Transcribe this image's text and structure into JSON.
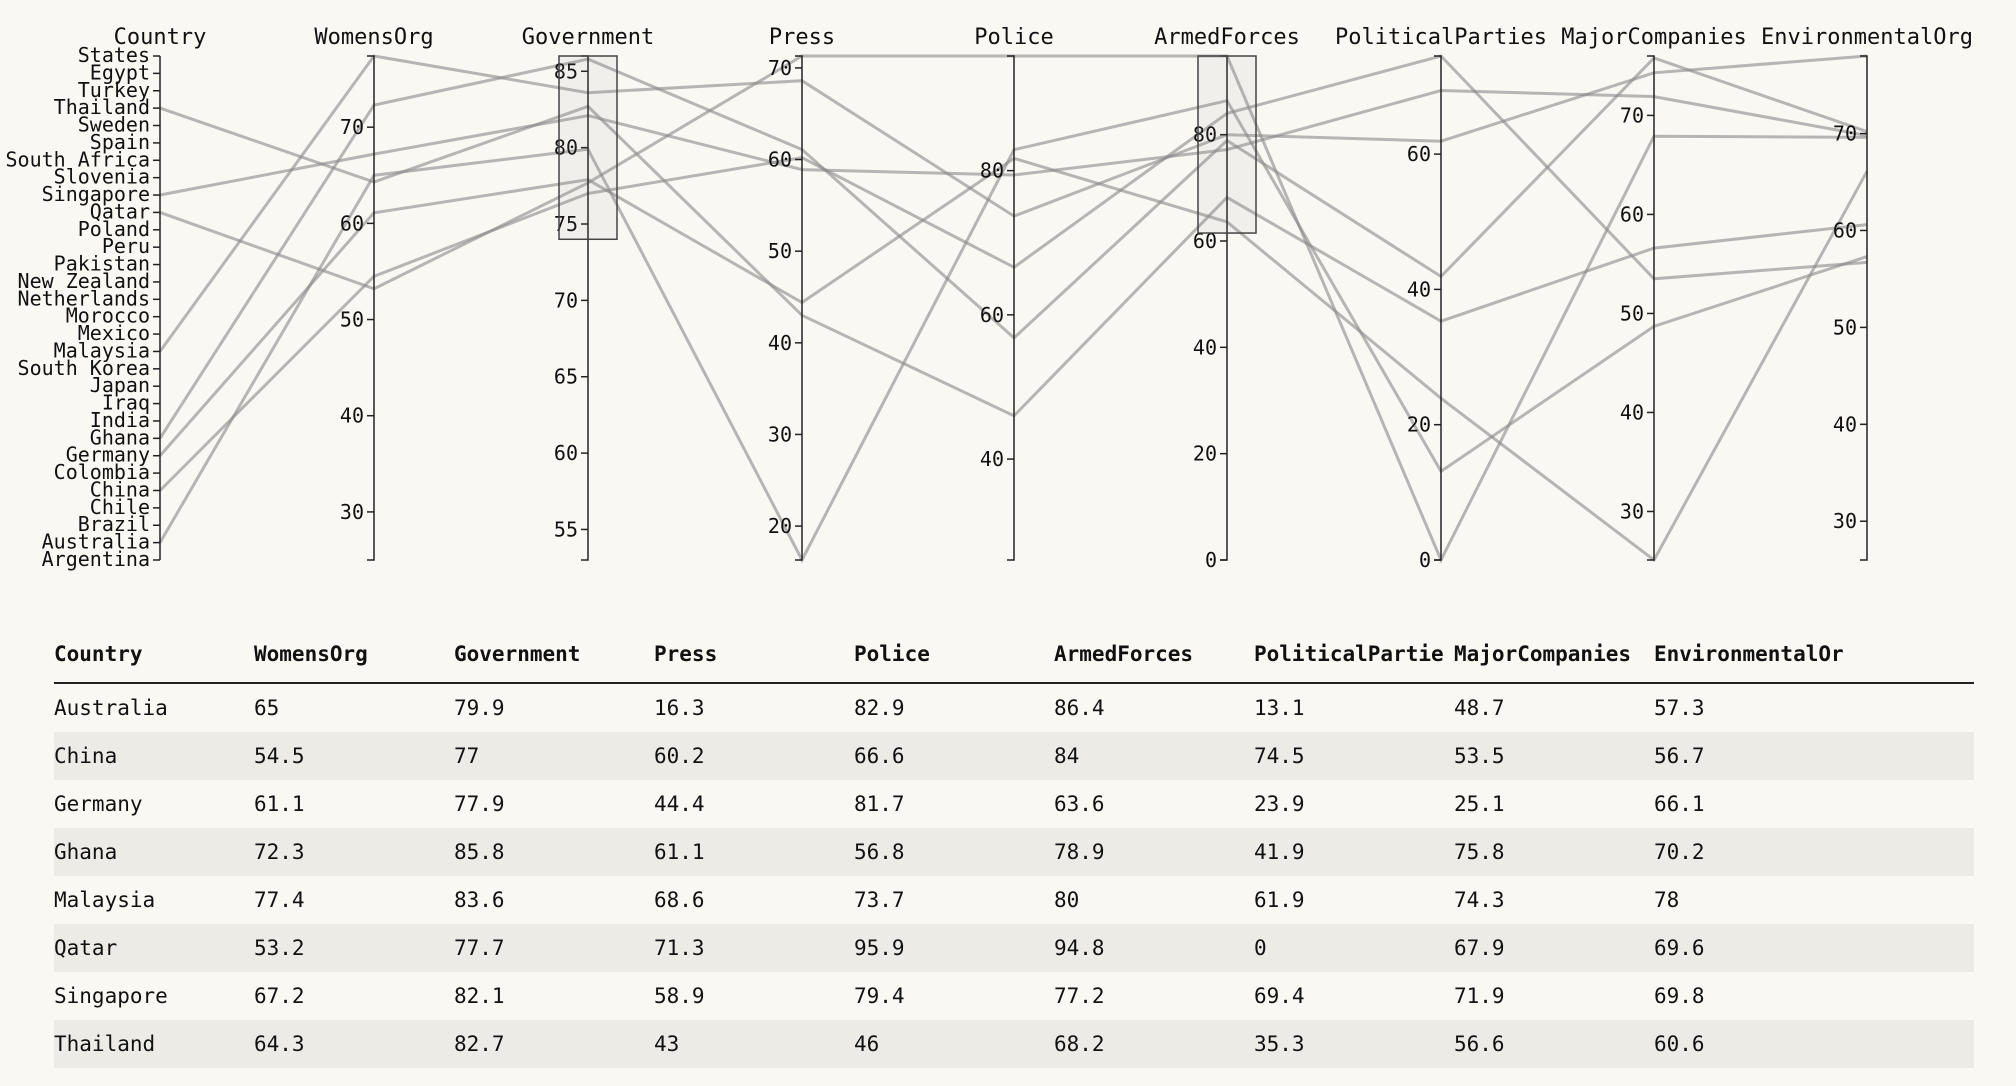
{
  "chart_data": {
    "type": "parallel-coordinates",
    "dimensions": [
      {
        "name": "Country",
        "kind": "categorical",
        "categories": [
          "States",
          "Egypt",
          "Turkey",
          "Thailand",
          "Sweden",
          "Spain",
          "South Africa",
          "Slovenia",
          "Singapore",
          "Qatar",
          "Poland",
          "Peru",
          "Pakistan",
          "New Zealand",
          "Netherlands",
          "Morocco",
          "Mexico",
          "Malaysia",
          "South Korea",
          "Japan",
          "Iraq",
          "India",
          "Ghana",
          "Germany",
          "Colombia",
          "China",
          "Chile",
          "Brazil",
          "Australia",
          "Argentina"
        ]
      },
      {
        "name": "WomensOrg",
        "kind": "numeric",
        "range": [
          25,
          77.4
        ],
        "ticks": [
          30,
          40,
          50,
          60,
          70
        ]
      },
      {
        "name": "Government",
        "kind": "numeric",
        "range": [
          53,
          86
        ],
        "ticks": [
          55,
          60,
          65,
          70,
          75,
          80,
          85
        ],
        "brush": [
          74,
          86
        ]
      },
      {
        "name": "Press",
        "kind": "numeric",
        "range": [
          16.3,
          71.3
        ],
        "ticks": [
          20,
          30,
          40,
          50,
          60,
          70
        ]
      },
      {
        "name": "Police",
        "kind": "numeric",
        "range": [
          26,
          95.9
        ],
        "ticks": [
          40,
          60,
          80
        ]
      },
      {
        "name": "ArmedForces",
        "kind": "numeric",
        "range": [
          0,
          94.8
        ],
        "ticks": [
          0,
          20,
          40,
          60,
          80
        ],
        "brush": [
          61.5,
          94.8
        ]
      },
      {
        "name": "PoliticalParties",
        "kind": "numeric",
        "range": [
          0,
          74.5
        ],
        "ticks": [
          0,
          20,
          40,
          60
        ]
      },
      {
        "name": "MajorCompanies",
        "kind": "numeric",
        "range": [
          25.1,
          76
        ],
        "ticks": [
          30,
          40,
          50,
          60,
          70
        ]
      },
      {
        "name": "EnvironmentalOrg",
        "kind": "numeric",
        "range": [
          26,
          78
        ],
        "ticks": [
          30,
          40,
          50,
          60,
          70
        ]
      }
    ],
    "rows": [
      {
        "Country": "Australia",
        "WomensOrg": 65,
        "Government": 79.9,
        "Press": 16.3,
        "Police": 82.9,
        "ArmedForces": 86.4,
        "PoliticalParties": 13.1,
        "MajorCompanies": 48.7,
        "EnvironmentalOrg": 57.3
      },
      {
        "Country": "China",
        "WomensOrg": 54.5,
        "Government": 77,
        "Press": 60.2,
        "Police": 66.6,
        "ArmedForces": 84,
        "PoliticalParties": 74.5,
        "MajorCompanies": 53.5,
        "EnvironmentalOrg": 56.7
      },
      {
        "Country": "Germany",
        "WomensOrg": 61.1,
        "Government": 77.9,
        "Press": 44.4,
        "Police": 81.7,
        "ArmedForces": 63.6,
        "PoliticalParties": 23.9,
        "MajorCompanies": 25.1,
        "EnvironmentalOrg": 66.1
      },
      {
        "Country": "Ghana",
        "WomensOrg": 72.3,
        "Government": 85.8,
        "Press": 61.1,
        "Police": 56.8,
        "ArmedForces": 78.9,
        "PoliticalParties": 41.9,
        "MajorCompanies": 75.8,
        "EnvironmentalOrg": 70.2
      },
      {
        "Country": "Malaysia",
        "WomensOrg": 77.4,
        "Government": 83.6,
        "Press": 68.6,
        "Police": 73.7,
        "ArmedForces": 80,
        "PoliticalParties": 61.9,
        "MajorCompanies": 74.3,
        "EnvironmentalOrg": 78
      },
      {
        "Country": "Qatar",
        "WomensOrg": 53.2,
        "Government": 77.7,
        "Press": 71.3,
        "Police": 95.9,
        "ArmedForces": 94.8,
        "PoliticalParties": 0,
        "MajorCompanies": 67.9,
        "EnvironmentalOrg": 69.6
      },
      {
        "Country": "Singapore",
        "WomensOrg": 67.2,
        "Government": 82.1,
        "Press": 58.9,
        "Police": 79.4,
        "ArmedForces": 77.2,
        "PoliticalParties": 69.4,
        "MajorCompanies": 71.9,
        "EnvironmentalOrg": 69.8
      },
      {
        "Country": "Thailand",
        "WomensOrg": 64.3,
        "Government": 82.7,
        "Press": 43,
        "Police": 46,
        "ArmedForces": 68.2,
        "PoliticalParties": 35.3,
        "MajorCompanies": 56.6,
        "EnvironmentalOrg": 60.6
      }
    ]
  },
  "table": {
    "headers": [
      "Country",
      "WomensOrg",
      "Government",
      "Press",
      "Police",
      "ArmedForces",
      "PoliticalPartie",
      "MajorCompanies",
      "EnvironmentalOr"
    ]
  }
}
